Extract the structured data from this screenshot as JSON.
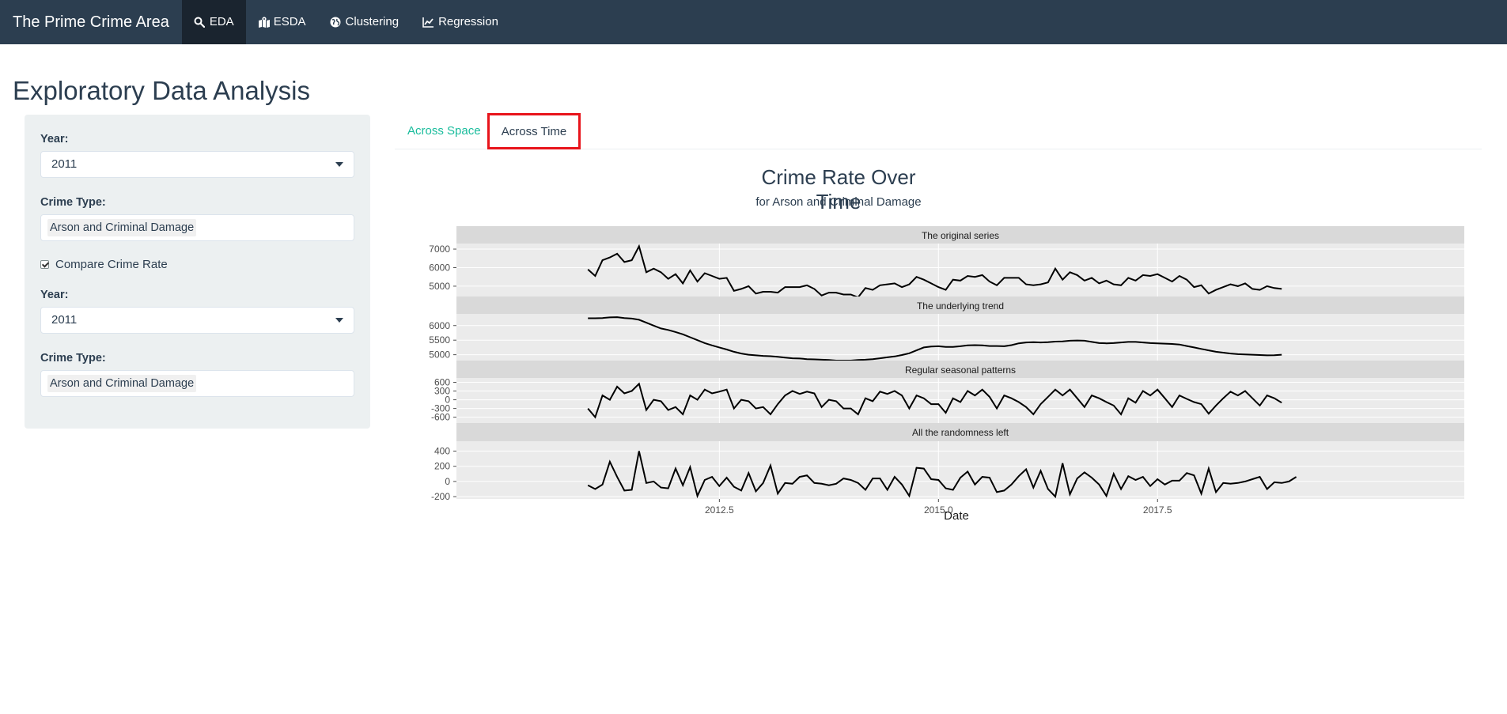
{
  "navbar": {
    "brand": "The Prime Crime Area",
    "items": [
      {
        "label": "EDA",
        "icon": "search-icon",
        "active": true
      },
      {
        "label": "ESDA",
        "icon": "map-marked-icon",
        "active": false
      },
      {
        "label": "Clustering",
        "icon": "globe-icon",
        "active": false
      },
      {
        "label": "Regression",
        "icon": "line-chart-icon",
        "active": false
      }
    ]
  },
  "page_title": "Exploratory Data Analysis",
  "sidebar": {
    "year1_label": "Year:",
    "year1_value": "2011",
    "crime1_label": "Crime Type:",
    "crime1_value": "Arson and Criminal Damage",
    "compare_label": "Compare Crime Rate",
    "compare_checked": true,
    "year2_label": "Year:",
    "year2_value": "2011",
    "crime2_label": "Crime Type:",
    "crime2_value": "Arson and Criminal Damage"
  },
  "tabs": [
    {
      "label": "Across Space",
      "active": false
    },
    {
      "label": "Across Time",
      "active": true
    }
  ],
  "colors": {
    "navbar_bg": "#2c3e50",
    "navbar_active": "#1a242f",
    "sidebar_bg": "#ecf0f1",
    "tab_link": "#18bc9c",
    "highlight_box": "#e8141b",
    "panel_bg": "#ebebeb",
    "strip_bg": "#d9d9d9"
  },
  "chart_data": {
    "type": "line",
    "title": "Crime Rate Over Time",
    "subtitle": "for Arson and Criminal Damage",
    "xlabel": "Date",
    "x_start": 2011.0,
    "x_step": 0.08333,
    "xlim": [
      2009.5,
      2021.0
    ],
    "x_ticks": [
      2012.5,
      2015.0,
      2017.5
    ],
    "x_tick_labels": [
      "2012.5",
      "2015.0",
      "2017.5"
    ],
    "grid": true,
    "panels": [
      {
        "name": "The original series",
        "ylim": [
          4400,
          7300
        ],
        "y_ticks": [
          5000,
          6000,
          7000
        ],
        "y_tick_labels": [
          "5000",
          "6000",
          "7000"
        ],
        "values": [
          5900,
          5550,
          6400,
          6550,
          6750,
          6300,
          6400,
          7150,
          5750,
          5950,
          5750,
          5400,
          5650,
          5150,
          5850,
          5250,
          5700,
          5550,
          5400,
          5450,
          4750,
          4850,
          5000,
          4600,
          4700,
          4700,
          4650,
          4950,
          4950,
          4950,
          5050,
          4850,
          4500,
          4650,
          4650,
          4550,
          4550,
          4400,
          4900,
          4800,
          5050,
          5100,
          5150,
          4950,
          5100,
          5500,
          5350,
          5150,
          4950,
          4800,
          5350,
          5300,
          5550,
          5500,
          5600,
          5250,
          5050,
          5450,
          5450,
          5450,
          5100,
          5050,
          5100,
          5200,
          5950,
          5350,
          5750,
          5600,
          5300,
          5450,
          5150,
          5300,
          5100,
          5050,
          5450,
          5300,
          5600,
          5550,
          5650,
          5450,
          5250,
          5550,
          5350,
          4950,
          5050,
          4600,
          4800,
          4950,
          5100,
          5000,
          5150,
          4850,
          4800,
          5000,
          4900,
          4850
        ]
      },
      {
        "name": "The underlying trend",
        "ylim": [
          4800,
          6400
        ],
        "y_ticks": [
          5000,
          5500,
          6000
        ],
        "y_tick_labels": [
          "5000",
          "5500",
          "6000"
        ],
        "values": [
          6250,
          6250,
          6260,
          6280,
          6290,
          6260,
          6240,
          6200,
          6100,
          6000,
          5900,
          5850,
          5780,
          5700,
          5600,
          5500,
          5400,
          5320,
          5250,
          5180,
          5100,
          5040,
          5000,
          4980,
          4960,
          4950,
          4930,
          4900,
          4880,
          4870,
          4850,
          4840,
          4830,
          4820,
          4800,
          4800,
          4800,
          4820,
          4830,
          4850,
          4880,
          4910,
          4940,
          4990,
          5050,
          5150,
          5250,
          5280,
          5290,
          5270,
          5270,
          5290,
          5320,
          5330,
          5320,
          5300,
          5300,
          5290,
          5330,
          5390,
          5420,
          5430,
          5420,
          5430,
          5450,
          5460,
          5480,
          5490,
          5480,
          5440,
          5400,
          5390,
          5400,
          5420,
          5440,
          5440,
          5420,
          5400,
          5390,
          5380,
          5370,
          5350,
          5300,
          5250,
          5200,
          5150,
          5100,
          5070,
          5040,
          5020,
          5010,
          5000,
          4990,
          4980,
          4985,
          5000
        ]
      },
      {
        "name": "Regular seasonal patterns",
        "ylim": [
          -800,
          750
        ],
        "y_ticks": [
          -600,
          -300,
          0,
          300,
          600
        ],
        "y_tick_labels": [
          "-600",
          "-300",
          "0",
          "300",
          "600"
        ],
        "values": [
          -300,
          -600,
          150,
          0,
          450,
          220,
          300,
          550,
          -350,
          0,
          -50,
          -350,
          -250,
          -500,
          150,
          0,
          350,
          220,
          280,
          350,
          -300,
          0,
          -50,
          -300,
          -250,
          -500,
          -150,
          150,
          300,
          200,
          280,
          220,
          -250,
          0,
          -50,
          -300,
          -300,
          -500,
          50,
          -50,
          280,
          200,
          300,
          150,
          -300,
          150,
          50,
          -150,
          -150,
          -450,
          50,
          -80,
          300,
          150,
          350,
          100,
          -300,
          150,
          50,
          -80,
          -250,
          -500,
          -150,
          100,
          350,
          150,
          350,
          50,
          -250,
          150,
          50,
          -80,
          -200,
          -500,
          50,
          -100,
          300,
          150,
          350,
          50,
          -250,
          150,
          30,
          -80,
          -150,
          -480,
          -200,
          50,
          280,
          150,
          300,
          50,
          -200,
          150,
          50,
          -100
        ]
      },
      {
        "name": "All the randomness left",
        "ylim": [
          -230,
          530
        ],
        "y_ticks": [
          -200,
          0,
          200,
          400
        ],
        "y_tick_labels": [
          "-200",
          "0",
          "200",
          "400"
        ],
        "values": [
          -50,
          -100,
          -40,
          260,
          60,
          -120,
          -110,
          400,
          -20,
          0,
          -80,
          -90,
          170,
          -50,
          190,
          -190,
          20,
          60,
          -60,
          50,
          -70,
          -120,
          110,
          -130,
          -20,
          210,
          -160,
          -20,
          -30,
          60,
          80,
          -20,
          -30,
          -50,
          -30,
          40,
          20,
          -20,
          -110,
          40,
          40,
          -110,
          60,
          -40,
          -190,
          180,
          170,
          30,
          20,
          -90,
          -110,
          50,
          130,
          -40,
          60,
          50,
          -140,
          -120,
          -40,
          70,
          160,
          -80,
          140,
          -100,
          -200,
          240,
          -170,
          40,
          120,
          50,
          -40,
          -190,
          100,
          -100,
          70,
          20,
          60,
          -60,
          30,
          -40,
          10,
          10,
          110,
          80,
          -160,
          170,
          -140,
          -20,
          -30,
          -20,
          0,
          30,
          60,
          -100,
          -10,
          -20,
          0,
          60
        ]
      }
    ]
  }
}
